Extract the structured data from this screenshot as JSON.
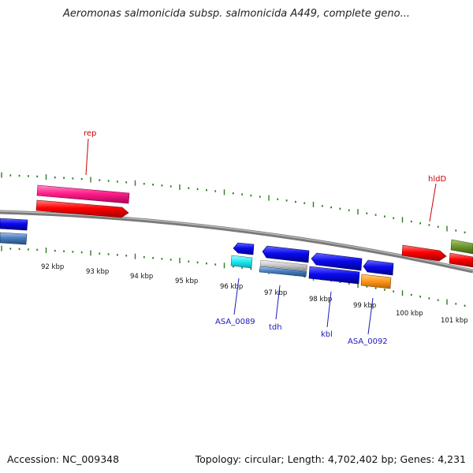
{
  "title": "Aeromonas salmonicida subsp. salmonicida A449, complete geno...",
  "footer": {
    "accession": "Accession: NC_009348",
    "topology": "Topology: circular; Length: 4,702,402 bp; Genes: 4,231"
  },
  "colors": {
    "backbone": "#8a8a8a",
    "tick": "#2e7d22",
    "label_red": "#cc0000",
    "label_blue": "#1a1ab8",
    "red": "#ff0000",
    "pink": "#ff1f8a",
    "blue": "#0a0aee",
    "steel": "#4b7fc0",
    "cyan": "#1ee8f0",
    "orange": "#ff9a1f",
    "olive": "#6f9a30",
    "silver": "#c8c8c8"
  },
  "scale_labels": [
    "92 kbp",
    "93 kbp",
    "94 kbp",
    "95 kbp",
    "96 kbp",
    "97 kbp",
    "98 kbp",
    "99 kbp",
    "100 kbp",
    "101 kbp"
  ],
  "gene_labels": {
    "rep": "rep",
    "hldD": "hldD",
    "asa_0089": "ASA_0089",
    "tdh": "tdh",
    "kbl": "kbl",
    "asa_0092": "ASA_0092"
  }
}
